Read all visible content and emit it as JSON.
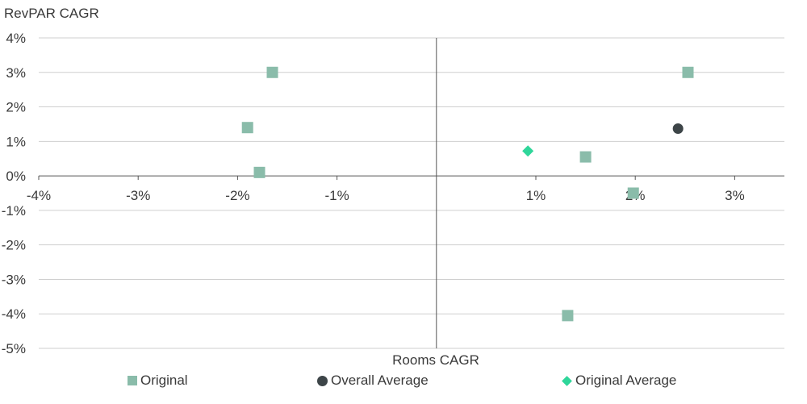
{
  "chart_data": {
    "type": "scatter",
    "ylabel": "RevPAR CAGR",
    "xlabel": "Rooms CAGR",
    "xlim": [
      -4,
      3.5
    ],
    "ylim": [
      -5,
      4
    ],
    "x_ticks": [
      -4,
      -3,
      -2,
      -1,
      1,
      2,
      3
    ],
    "x_tick_labels": [
      "-4%",
      "-3%",
      "-2%",
      "-1%",
      "1%",
      "2%",
      "3%"
    ],
    "y_ticks": [
      4,
      3,
      2,
      1,
      0,
      -1,
      -2,
      -3,
      -4,
      -5
    ],
    "y_tick_labels": [
      "4%",
      "3%",
      "2%",
      "1%",
      "0%",
      "-1%",
      "-2%",
      "-3%",
      "-4%",
      "-5%"
    ],
    "grid": "horizontal",
    "legend_placement": "bottom",
    "series": [
      {
        "name": "Original",
        "marker": "square",
        "color": "#8abcaa",
        "points": [
          {
            "x": -1.65,
            "y": 3.0
          },
          {
            "x": -1.9,
            "y": 1.4
          },
          {
            "x": -1.78,
            "y": 0.1
          },
          {
            "x": 1.5,
            "y": 0.55
          },
          {
            "x": 1.98,
            "y": -0.5
          },
          {
            "x": 2.53,
            "y": 3.0
          },
          {
            "x": 1.32,
            "y": -4.05
          }
        ]
      },
      {
        "name": "Overall Average",
        "marker": "circle",
        "color": "#3d4548",
        "points": [
          {
            "x": 2.43,
            "y": 1.37
          }
        ]
      },
      {
        "name": "Original Average",
        "marker": "diamond",
        "color": "#2fd69a",
        "points": [
          {
            "x": 0.92,
            "y": 0.72
          }
        ]
      }
    ]
  }
}
